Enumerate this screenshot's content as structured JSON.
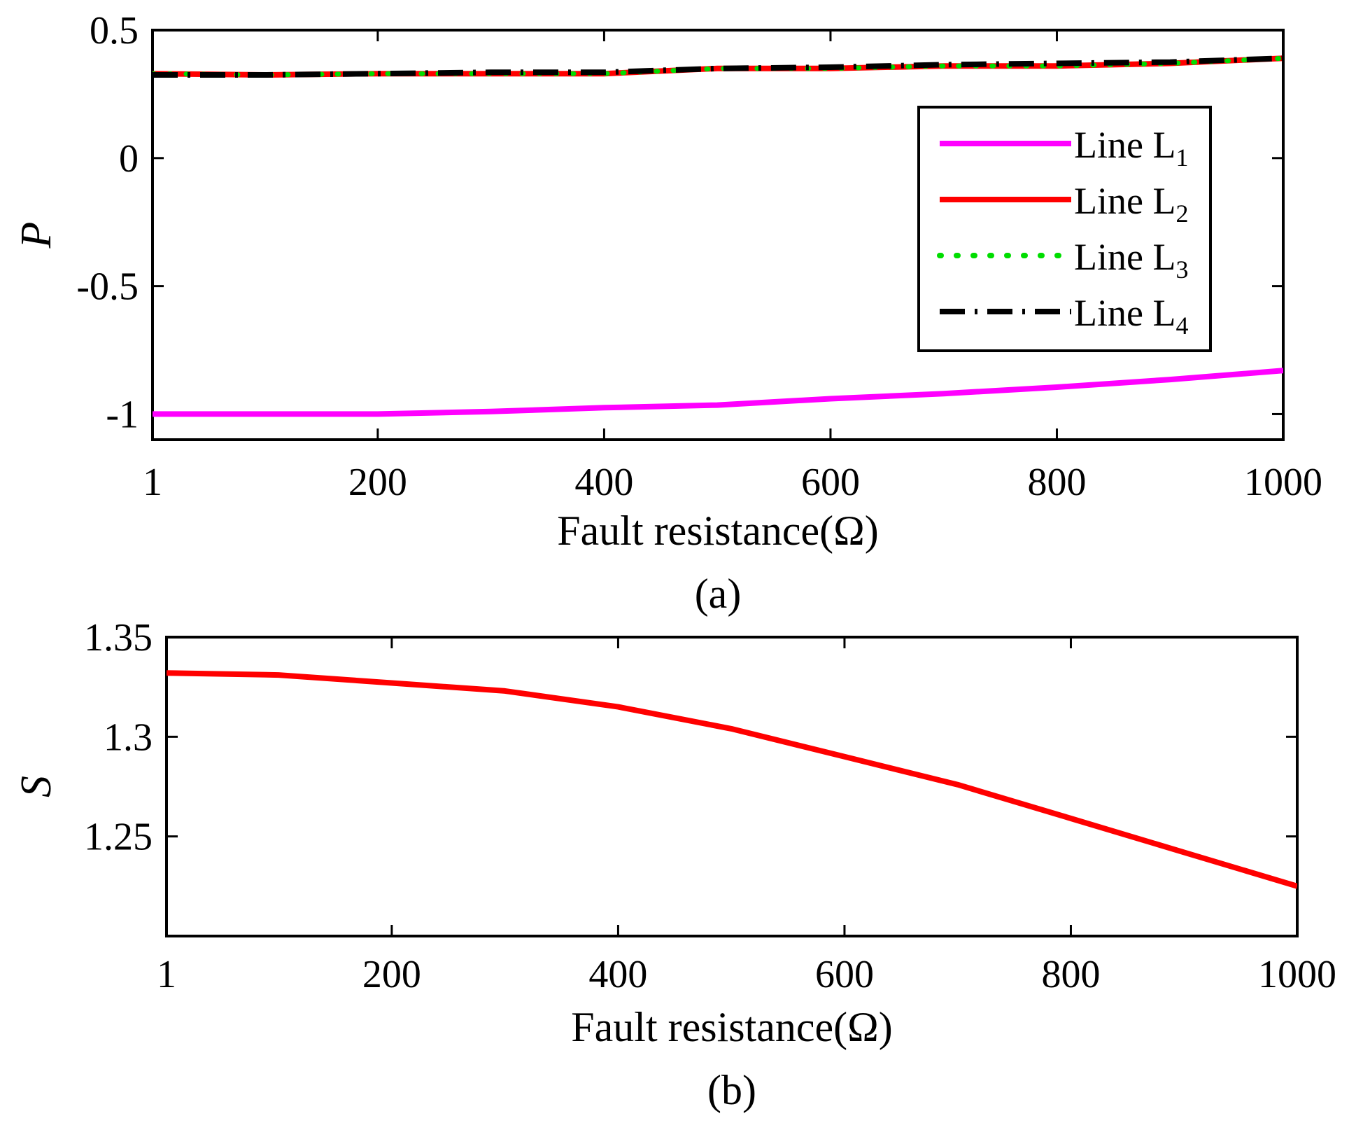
{
  "chart_data": [
    {
      "type": "line",
      "caption": "(a)",
      "xlabel": "Fault resistance(Ω)",
      "ylabel": "P",
      "xlim": [
        1,
        1000
      ],
      "ylim": [
        -1.1,
        0.5
      ],
      "xticks": [
        1,
        200,
        400,
        600,
        800,
        1000
      ],
      "yticks": [
        {
          "value": 0.5,
          "label": "0.5"
        },
        {
          "value": 0,
          "label": "0"
        },
        {
          "value": -0.5,
          "label": "-0.5"
        },
        {
          "value": -1,
          "label": "-1"
        }
      ],
      "legend_location": "right",
      "x": [
        1,
        100,
        200,
        300,
        400,
        500,
        600,
        700,
        800,
        900,
        1000
      ],
      "series": [
        {
          "name": "Line L",
          "sub": "1",
          "color": "#ff00ff",
          "style": "solid",
          "values": [
            -1.0,
            -1.0,
            -1.0,
            -0.99,
            -0.975,
            -0.965,
            -0.94,
            -0.92,
            -0.895,
            -0.865,
            -0.83
          ]
        },
        {
          "name": "Line L",
          "sub": "2",
          "color": "#ff0000",
          "style": "solid",
          "values": [
            0.33,
            0.325,
            0.33,
            0.33,
            0.33,
            0.35,
            0.35,
            0.36,
            0.36,
            0.37,
            0.39
          ]
        },
        {
          "name": "Line L",
          "sub": "3",
          "color": "#00dd00",
          "style": "dotted",
          "values": [
            0.33,
            0.325,
            0.33,
            0.33,
            0.33,
            0.35,
            0.35,
            0.36,
            0.36,
            0.37,
            0.39
          ]
        },
        {
          "name": "Line L",
          "sub": "4",
          "color": "#000000",
          "style": "dashdot",
          "values": [
            0.325,
            0.325,
            0.33,
            0.335,
            0.335,
            0.35,
            0.355,
            0.365,
            0.37,
            0.375,
            0.39
          ]
        }
      ]
    },
    {
      "type": "line",
      "caption": "(b)",
      "xlabel": "Fault resistance(Ω)",
      "ylabel": "S",
      "xlim": [
        1,
        1000
      ],
      "ylim": [
        1.2,
        1.35
      ],
      "xticks": [
        1,
        200,
        400,
        600,
        800,
        1000
      ],
      "yticks": [
        {
          "value": 1.35,
          "label": "1.35"
        },
        {
          "value": 1.3,
          "label": "1.3"
        },
        {
          "value": 1.25,
          "label": "1.25"
        }
      ],
      "x": [
        1,
        100,
        200,
        300,
        400,
        500,
        600,
        700,
        800,
        900,
        1000
      ],
      "series": [
        {
          "name": "S",
          "color": "#ff0000",
          "style": "solid",
          "values": [
            1.332,
            1.331,
            1.327,
            1.323,
            1.315,
            1.304,
            1.29,
            1.276,
            1.259,
            1.242,
            1.225
          ]
        }
      ]
    }
  ]
}
